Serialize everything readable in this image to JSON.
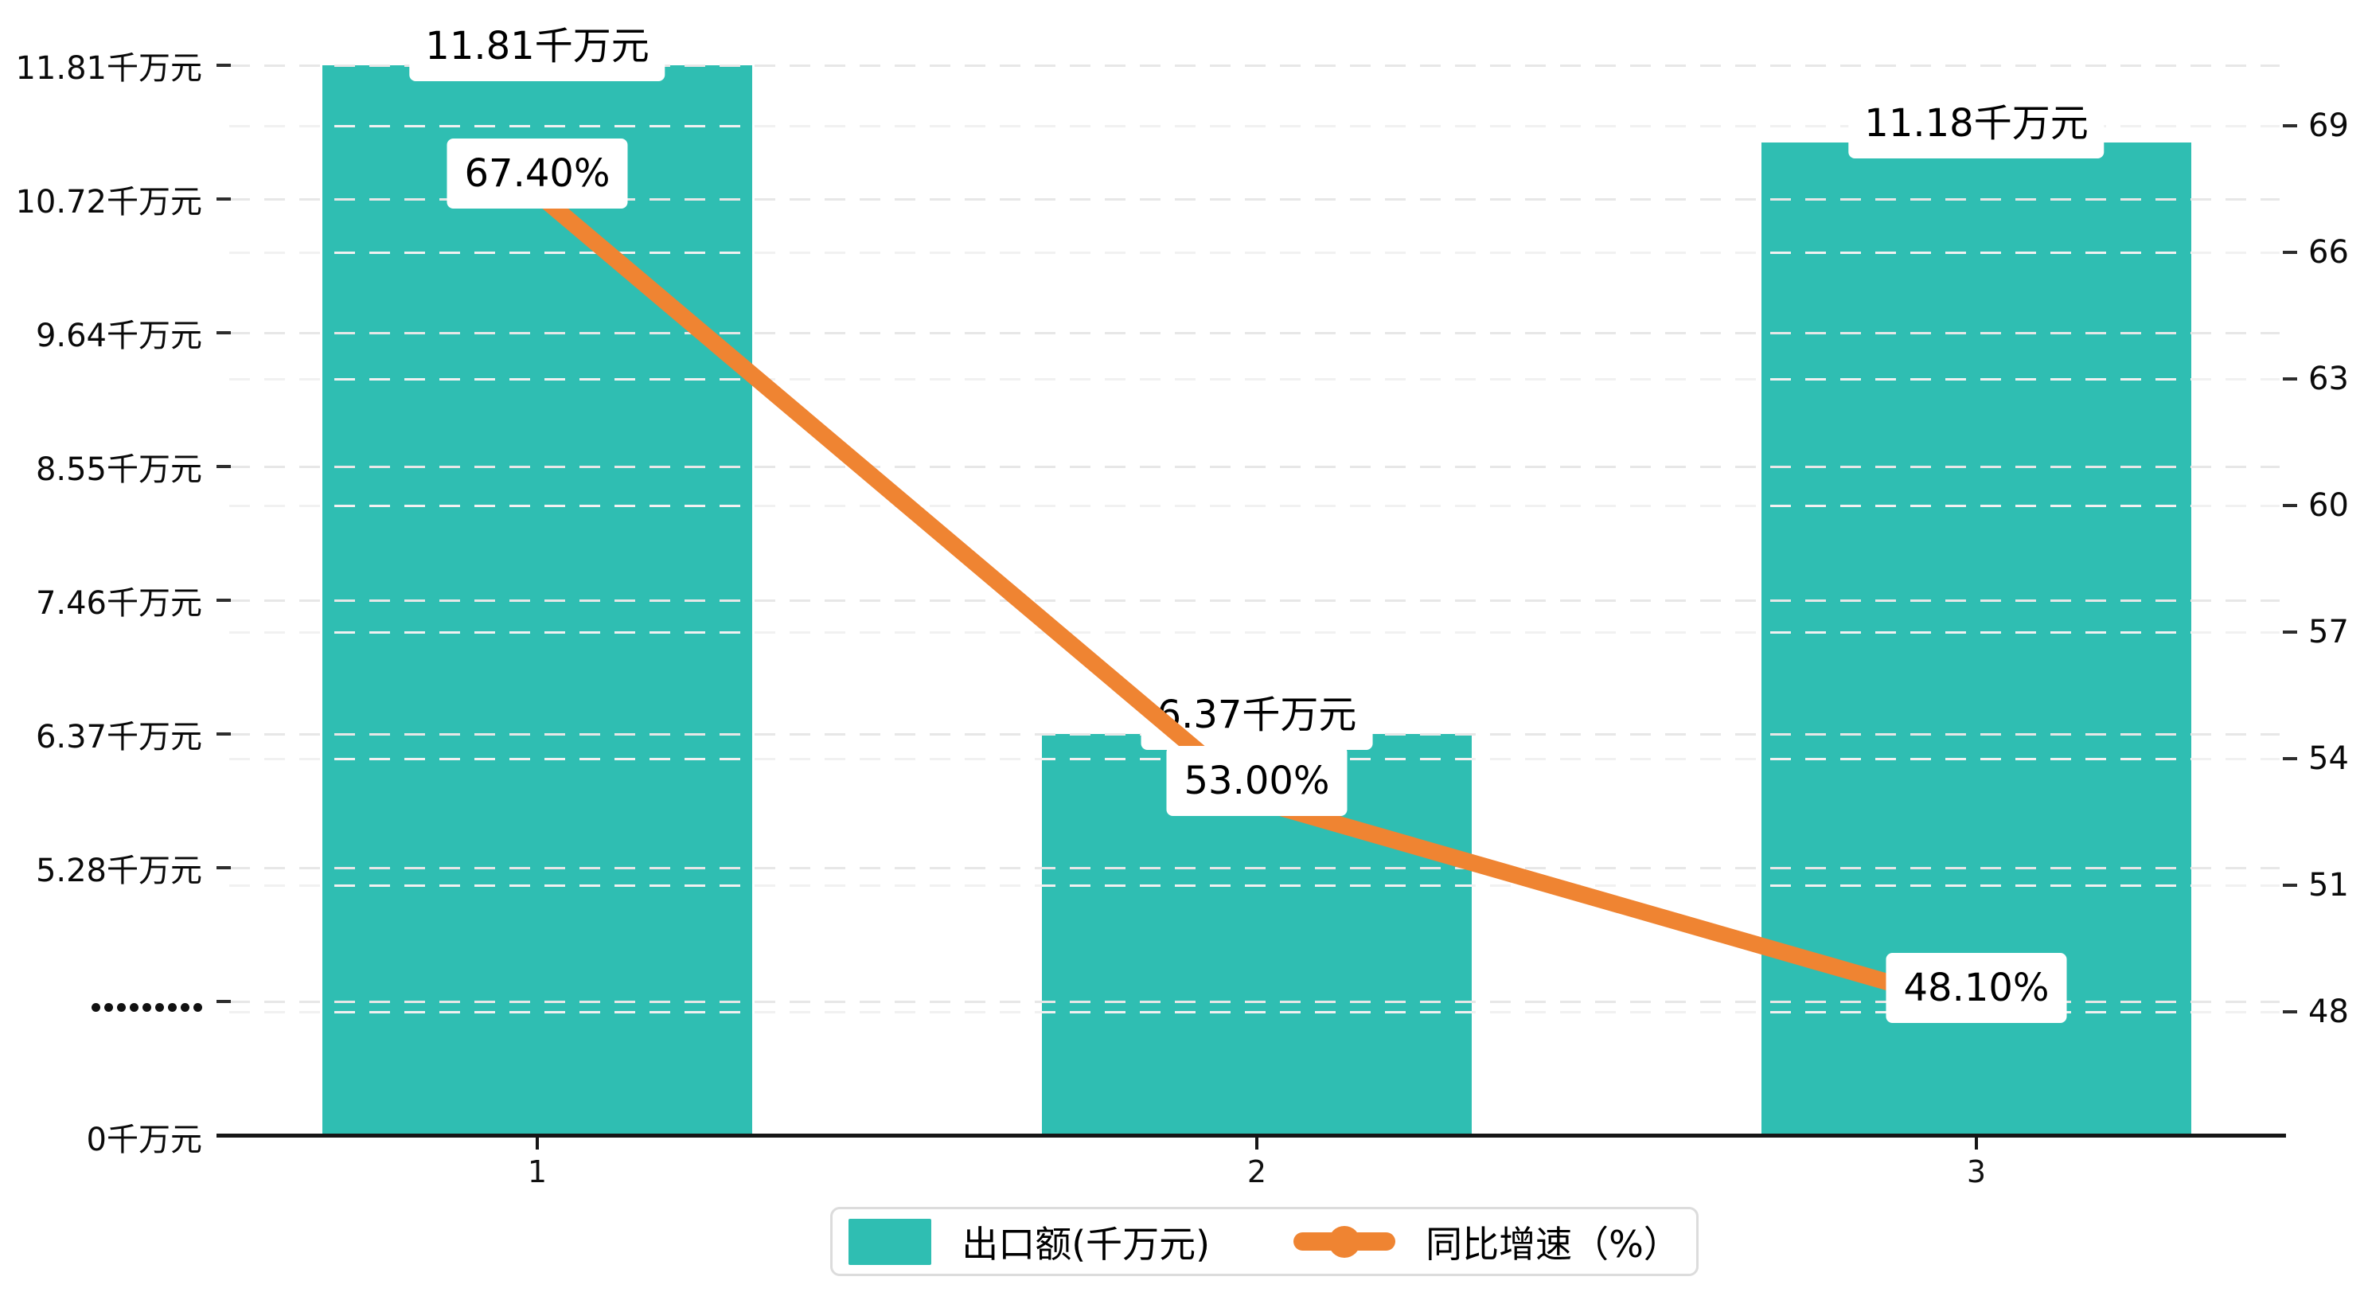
{
  "chart_data": {
    "type": "bar",
    "subtype": "bar-line-combo",
    "categories": [
      "1",
      "2",
      "3"
    ],
    "series": [
      {
        "name": "出口额(千万元)",
        "kind": "bar",
        "axis": "left",
        "color": "#2FBEB2",
        "values": [
          11.81,
          6.37,
          11.18
        ],
        "data_labels": [
          "11.81千万元",
          "6.37千万元",
          "11.18千万元"
        ]
      },
      {
        "name": "同比增速（%）",
        "kind": "line",
        "axis": "right",
        "color": "#EF8432",
        "values": [
          67.4,
          53.0,
          48.1
        ],
        "data_labels": [
          "67.40%",
          "53.00%",
          "48.10%"
        ]
      }
    ],
    "left_axis": {
      "tick_labels": [
        "11.81千万元",
        "10.72千万元",
        "9.64千万元",
        "8.55千万元",
        "7.46千万元",
        "6.37千万元",
        "5.28千万元",
        ".........",
        "0千万元"
      ],
      "has_break": true,
      "range_top_value": 11.81
    },
    "right_axis": {
      "tick_labels": [
        "69",
        "66",
        "63",
        "60",
        "57",
        "54",
        "51",
        "48"
      ],
      "min": 48,
      "max": 69,
      "step": 3
    },
    "x_axis": {
      "tick_labels": [
        "1",
        "2",
        "3"
      ]
    },
    "legend": {
      "position": "bottom",
      "items": [
        {
          "label": "出口额(千万元)",
          "marker": "square",
          "color": "#2FBEB2"
        },
        {
          "label": "同比增速（%）",
          "marker": "line-dot",
          "color": "#EF8432"
        }
      ]
    },
    "grid": {
      "horizontal": true,
      "style": "dashed"
    },
    "title": "",
    "ylim_left": [
      0,
      11.81
    ],
    "ylim_right": [
      48,
      69
    ]
  }
}
